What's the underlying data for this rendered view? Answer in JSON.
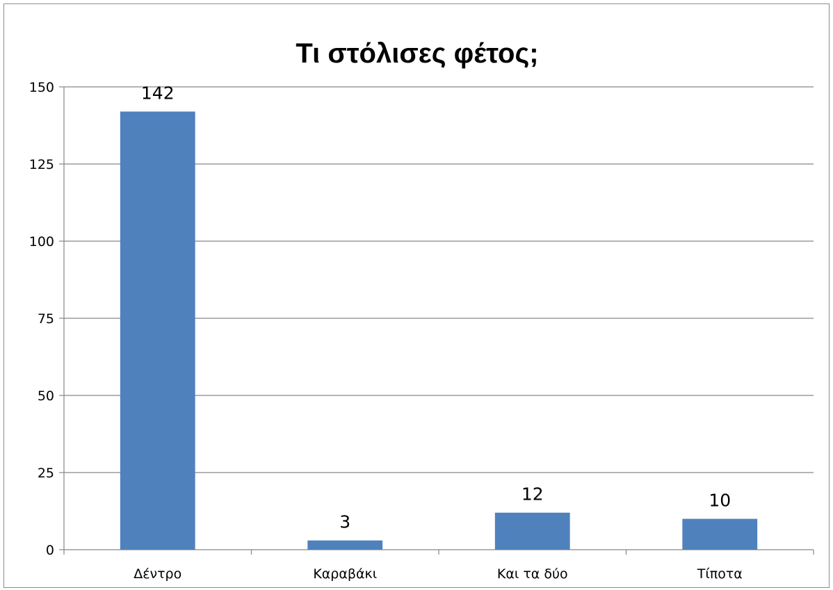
{
  "chart_data": {
    "type": "bar",
    "title": "Τι στόλισες φέτος;",
    "xlabel": "",
    "ylabel": "",
    "categories": [
      "Δέντρο",
      "Καραβάκι",
      "Και τα δύο",
      "Τίποτα"
    ],
    "values": [
      142,
      3,
      12,
      10
    ],
    "data_labels": [
      "142",
      "3",
      "12",
      "10"
    ],
    "ylim": [
      0,
      150
    ],
    "yticks": [
      0,
      25,
      50,
      75,
      100,
      125,
      150
    ],
    "ytick_labels": [
      "0",
      "25",
      "50",
      "75",
      "100",
      "125",
      "150"
    ],
    "grid": true,
    "legend": "none",
    "bar_color": "#4F81BD",
    "grid_color": "#868686"
  }
}
